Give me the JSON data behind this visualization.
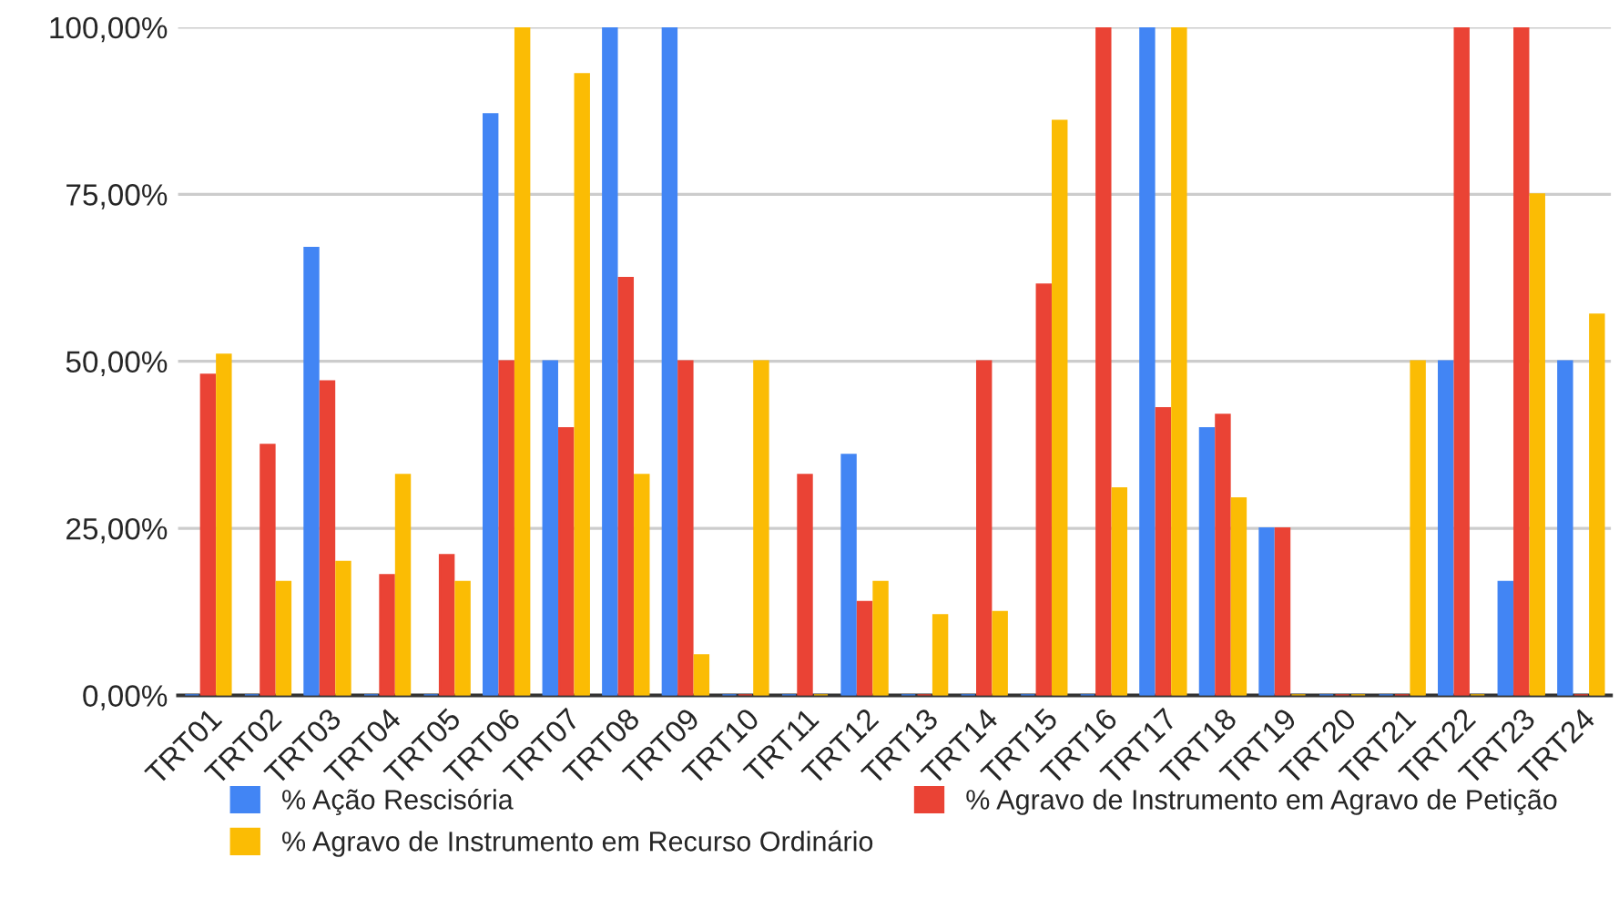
{
  "chart_data": {
    "type": "bar",
    "categories": [
      "TRT01",
      "TRT02",
      "TRT03",
      "TRT04",
      "TRT05",
      "TRT06",
      "TRT07",
      "TRT08",
      "TRT09",
      "TRT10",
      "TRT11",
      "TRT12",
      "TRT13",
      "TRT14",
      "TRT15",
      "TRT16",
      "TRT17",
      "TRT18",
      "TRT19",
      "TRT20",
      "TRT21",
      "TRT22",
      "TRT23",
      "TRT24"
    ],
    "series": [
      {
        "name": "% Ação Rescisória",
        "color": "#4285f4",
        "values": [
          0,
          0,
          67,
          0,
          0,
          87,
          50,
          100,
          100,
          0,
          0,
          36,
          0,
          0,
          0,
          0,
          100,
          40,
          25,
          0,
          0,
          50,
          17,
          50
        ]
      },
      {
        "name": "% Agravo de Instrumento em Agravo de Petição",
        "color": "#ea4335",
        "values": [
          48,
          37.5,
          47,
          18,
          21,
          50,
          40,
          62.5,
          50,
          0,
          33,
          14,
          0,
          50,
          61.5,
          100,
          43,
          42,
          25,
          0,
          0,
          100,
          100,
          0
        ]
      },
      {
        "name": "% Agravo de Instrumento em Recurso Ordinário",
        "color": "#fbbc04",
        "values": [
          51,
          17,
          20,
          33,
          17,
          100,
          93,
          33,
          6,
          50,
          0,
          17,
          12,
          12.5,
          86,
          31,
          100,
          29.5,
          0,
          0,
          50,
          0,
          75,
          57
        ]
      }
    ],
    "ylim": [
      0,
      100
    ],
    "yticks": [
      {
        "value": 0,
        "label": "0,00%"
      },
      {
        "value": 25,
        "label": "25,00%"
      },
      {
        "value": 50,
        "label": "50,00%"
      },
      {
        "value": 75,
        "label": "75,00%"
      },
      {
        "value": 100,
        "label": "100,00%"
      }
    ],
    "grid": "y",
    "legend": "bottom"
  }
}
